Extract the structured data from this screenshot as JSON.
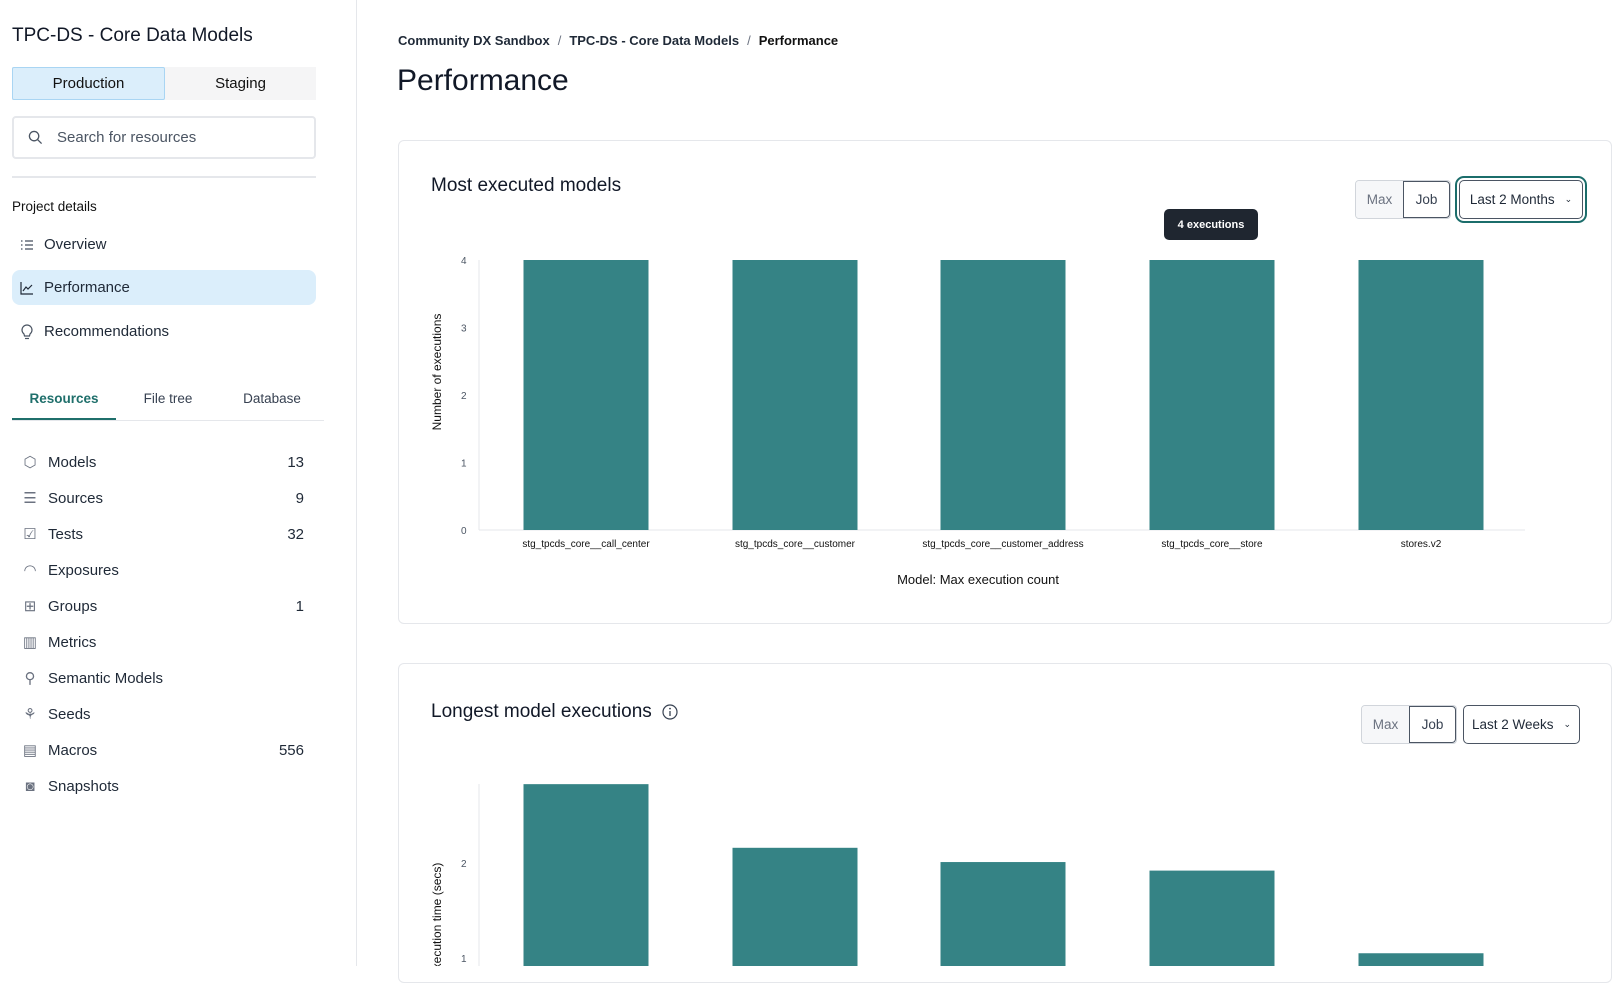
{
  "sidebar": {
    "project_title": "TPC-DS - Core Data Models",
    "environments": [
      "Production",
      "Staging"
    ],
    "active_environment": "Production",
    "search_placeholder": "Search for resources",
    "section_label": "Project details",
    "nav": [
      {
        "label": "Overview",
        "icon": "list-icon"
      },
      {
        "label": "Performance",
        "icon": "line-chart-icon",
        "active": true
      },
      {
        "label": "Recommendations",
        "icon": "lightbulb-icon"
      }
    ],
    "tabs": [
      "Resources",
      "File tree",
      "Database"
    ],
    "active_tab": "Resources",
    "resources": [
      {
        "label": "Models",
        "count": "13",
        "icon": "cube-icon"
      },
      {
        "label": "Sources",
        "count": "9",
        "icon": "database-icon"
      },
      {
        "label": "Tests",
        "count": "32",
        "icon": "clipboard-check-icon"
      },
      {
        "label": "Exposures",
        "count": "",
        "icon": "gauge-icon"
      },
      {
        "label": "Groups",
        "count": "1",
        "icon": "grid-icon"
      },
      {
        "label": "Metrics",
        "count": "",
        "icon": "bar-chart-icon"
      },
      {
        "label": "Semantic Models",
        "count": "",
        "icon": "nodes-icon"
      },
      {
        "label": "Seeds",
        "count": "",
        "icon": "sprout-icon"
      },
      {
        "label": "Macros",
        "count": "556",
        "icon": "file-text-icon"
      },
      {
        "label": "Snapshots",
        "count": "",
        "icon": "camera-icon"
      }
    ]
  },
  "breadcrumb": [
    "Community DX Sandbox",
    "TPC-DS - Core Data Models",
    "Performance"
  ],
  "page_title": "Performance",
  "cards": [
    {
      "title": "Most executed models",
      "seg": [
        "Max",
        "Job"
      ],
      "range": "Last 2 Months",
      "tooltip": "4 executions"
    },
    {
      "title": "Longest model executions",
      "seg": [
        "Max",
        "Job"
      ],
      "range": "Last 2 Weeks"
    }
  ],
  "accent_color": "#358385",
  "chart_data": [
    {
      "type": "bar",
      "categories": [
        "stg_tpcds_core__call_center",
        "stg_tpcds_core__customer",
        "stg_tpcds_core__customer_address",
        "stg_tpcds_core__store",
        "stores.v2"
      ],
      "values": [
        4,
        4,
        4,
        4,
        4
      ],
      "xlabel": "Model: Max execution count",
      "ylabel": "Number of executions",
      "yticks": [
        "0",
        "1",
        "2",
        "3",
        "4"
      ],
      "ylim": [
        0,
        4
      ],
      "grid": false
    },
    {
      "type": "bar",
      "values": [
        2.83,
        2.16,
        2.01,
        1.92,
        1.05
      ],
      "ylabel": "Execution time (secs)",
      "yticks": [
        "1",
        "2"
      ],
      "grid": false
    }
  ]
}
